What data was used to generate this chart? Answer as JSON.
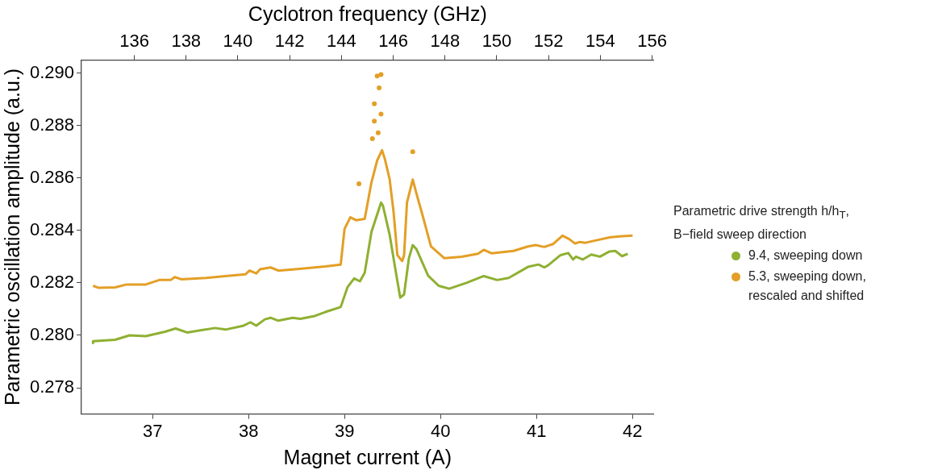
{
  "chart_data": {
    "type": "line",
    "xlabel": "Magnet current (A)",
    "x2label": "Cyclotron frequency (GHz)",
    "ylabel": "Parametric oscillation amplitude (a.u.)",
    "legend_title": "Parametric drive strength h/h$_{T}$,\nB−field sweep direction",
    "xlim": [
      36.26,
      42.22
    ],
    "xticks": [
      37,
      38,
      39,
      40,
      41,
      42
    ],
    "x2lim": [
      133.96,
      156.06
    ],
    "x2ticks": [
      136,
      138,
      140,
      142,
      144,
      146,
      148,
      150,
      152,
      154,
      156
    ],
    "ylim": [
      0.277,
      0.2905
    ],
    "yticks": [
      0.278,
      {
        "value": 0.28,
        "label": "0.280"
      },
      0.282,
      0.284,
      0.286,
      0.288,
      {
        "value": 0.29,
        "label": "0.290"
      }
    ],
    "grid": false,
    "legend": "right",
    "line_style": "solid",
    "marker": "none",
    "series": [
      {
        "name": "9.4, sweeping down",
        "color": "#8fb032",
        "x": [
          36.38,
          36.38,
          36.61,
          36.76,
          36.93,
          37.13,
          37.24,
          37.36,
          37.65,
          37.76,
          37.94,
          38.02,
          38.08,
          38.17,
          38.23,
          38.31,
          38.46,
          38.54,
          38.69,
          38.8,
          38.96,
          39.03,
          39.1,
          39.16,
          39.21,
          39.28,
          39.38,
          39.4,
          39.47,
          39.54,
          39.58,
          39.62,
          39.67,
          39.71,
          39.75,
          39.87,
          39.98,
          40.09,
          40.27,
          40.45,
          40.59,
          40.71,
          40.91,
          41.02,
          41.08,
          41.12,
          41.25,
          41.33,
          41.38,
          41.41,
          41.48,
          41.57,
          41.66,
          41.76,
          41.82,
          41.89,
          41.95
        ],
        "values": [
          0.27967,
          0.27978,
          0.27983,
          0.28,
          0.27997,
          0.28014,
          0.28026,
          0.28011,
          0.28028,
          0.28022,
          0.28036,
          0.2805,
          0.28037,
          0.28061,
          0.28067,
          0.28056,
          0.28067,
          0.28063,
          0.28074,
          0.28089,
          0.28108,
          0.28183,
          0.28217,
          0.28206,
          0.28239,
          0.28394,
          0.28506,
          0.28494,
          0.28383,
          0.28228,
          0.28144,
          0.28156,
          0.28294,
          0.28344,
          0.28328,
          0.28228,
          0.28189,
          0.28178,
          0.282,
          0.28226,
          0.28211,
          0.28219,
          0.28261,
          0.2827,
          0.28259,
          0.28267,
          0.28306,
          0.28314,
          0.28289,
          0.283,
          0.28289,
          0.28308,
          0.283,
          0.2832,
          0.28322,
          0.28302,
          0.28311
        ]
      },
      {
        "name": "5.3, sweeping down,\nrescaled and shifted",
        "color": "#e39f26",
        "x": [
          36.38,
          36.44,
          36.61,
          36.73,
          36.93,
          37.07,
          37.19,
          37.23,
          37.3,
          37.56,
          37.76,
          37.97,
          38.01,
          38.08,
          38.12,
          38.23,
          38.31,
          38.51,
          38.8,
          38.96,
          39.0,
          39.06,
          39.12,
          39.21,
          39.28,
          39.34,
          39.39,
          39.42,
          39.47,
          39.51,
          39.55,
          39.6,
          39.62,
          39.65,
          39.71,
          39.75,
          39.81,
          39.9,
          40.04,
          40.22,
          40.39,
          40.45,
          40.53,
          40.76,
          40.91,
          40.99,
          41.08,
          41.17,
          41.27,
          41.34,
          41.4,
          41.45,
          41.51,
          41.63,
          41.77,
          41.89,
          42.0
        ],
        "values": [
          0.28189,
          0.28181,
          0.28183,
          0.28194,
          0.28194,
          0.28211,
          0.28211,
          0.28222,
          0.28214,
          0.28219,
          0.28226,
          0.28233,
          0.28247,
          0.28236,
          0.28252,
          0.28259,
          0.28247,
          0.28253,
          0.28263,
          0.2827,
          0.28406,
          0.2845,
          0.28439,
          0.28444,
          0.28583,
          0.28667,
          0.28706,
          0.28672,
          0.28594,
          0.28472,
          0.28306,
          0.28283,
          0.28306,
          0.28506,
          0.28594,
          0.28539,
          0.28461,
          0.28339,
          0.28294,
          0.283,
          0.28311,
          0.28326,
          0.28313,
          0.28322,
          0.28339,
          0.28344,
          0.28337,
          0.28348,
          0.2838,
          0.28367,
          0.2835,
          0.28356,
          0.28353,
          0.28363,
          0.28374,
          0.28378,
          0.2838
        ]
      },
      {
        "type": "scatter",
        "marker": "circle",
        "color": "#e39f26",
        "x": [
          39.15,
          39.29,
          39.31,
          39.31,
          39.34,
          39.35,
          39.36,
          39.38,
          39.38,
          39.71
        ],
        "values": [
          0.28578,
          0.2875,
          0.28883,
          0.28817,
          0.28989,
          0.28772,
          0.28944,
          0.28994,
          0.28844,
          0.287
        ]
      }
    ]
  }
}
